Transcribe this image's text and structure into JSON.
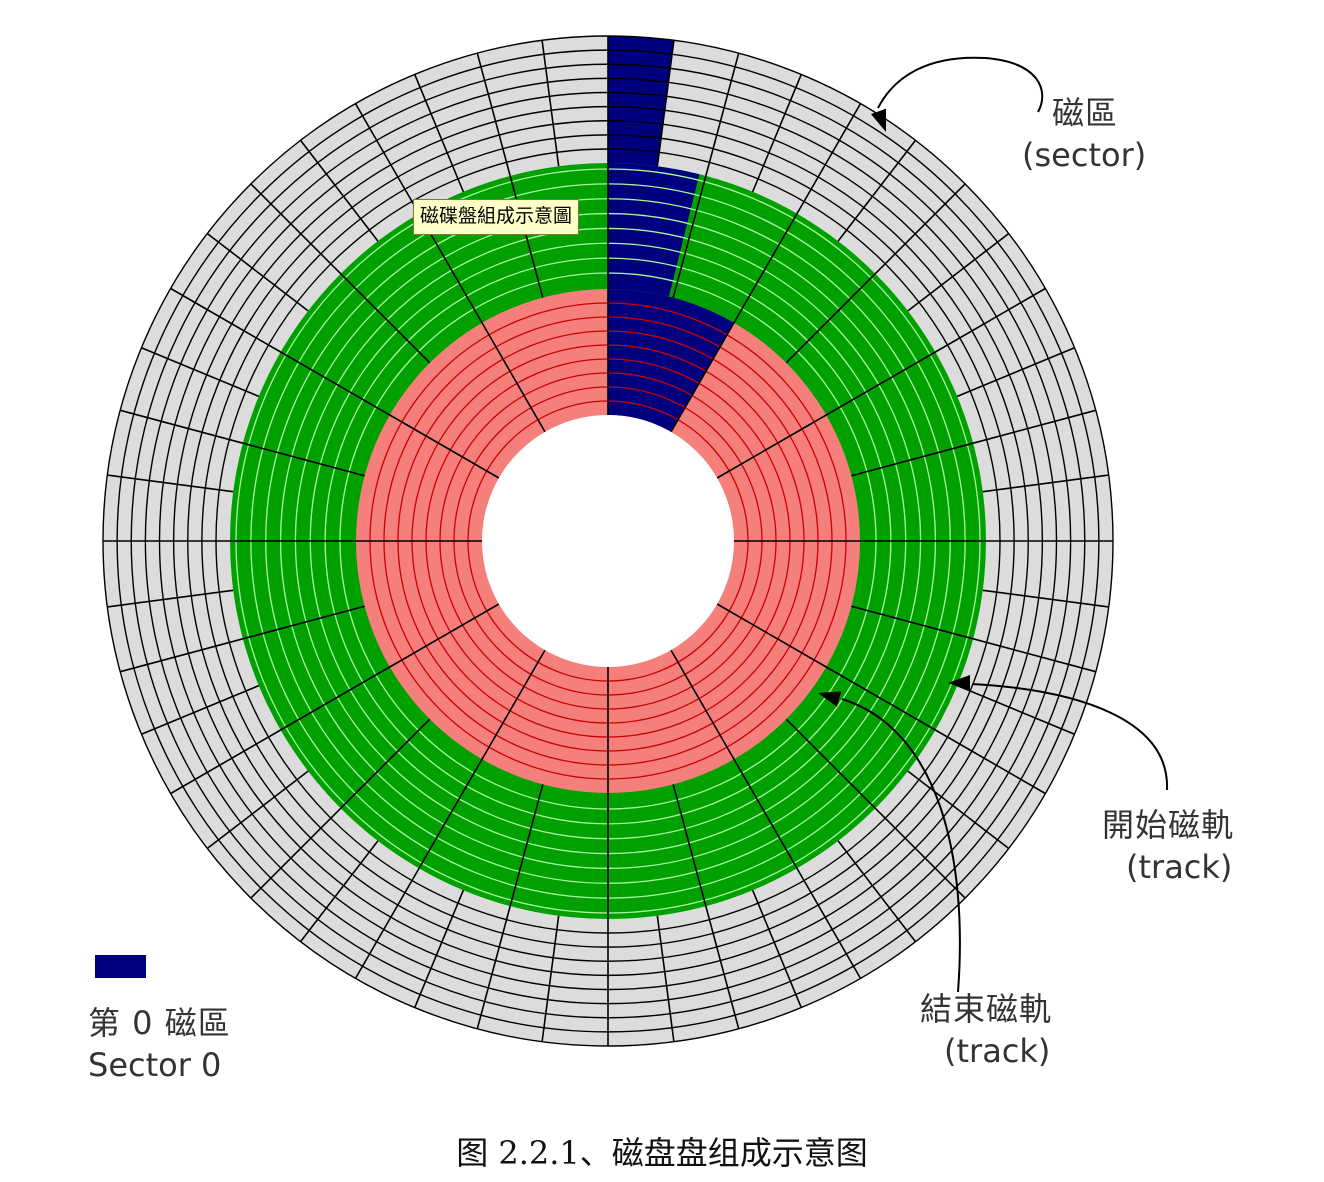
{
  "figure_title": "磁碟盤組成示意圖",
  "labels": {
    "sector_cn": "磁區",
    "sector_en": "(sector)",
    "start_track_cn": "開始磁軌",
    "start_track_en": "(track)",
    "end_track_cn": "結束磁軌",
    "end_track_en": "(track)"
  },
  "legend": {
    "swatch_color": "#00007f",
    "label_cn": "第 0 磁區",
    "label_en": "Sector 0"
  },
  "caption": "图 2.2.1、磁盘盘组成示意图",
  "colors": {
    "outer_zone": "#dcdcdc",
    "middle_zone": "#00a000",
    "middle_zone_edge": "#2ee62e",
    "inner_zone": "#f47f7b",
    "sector_0": "#00007f",
    "outer_lines": "#000000",
    "middle_lines": "#a8f7a0",
    "inner_lines": "#cc0000",
    "spokes": "#000000"
  }
}
